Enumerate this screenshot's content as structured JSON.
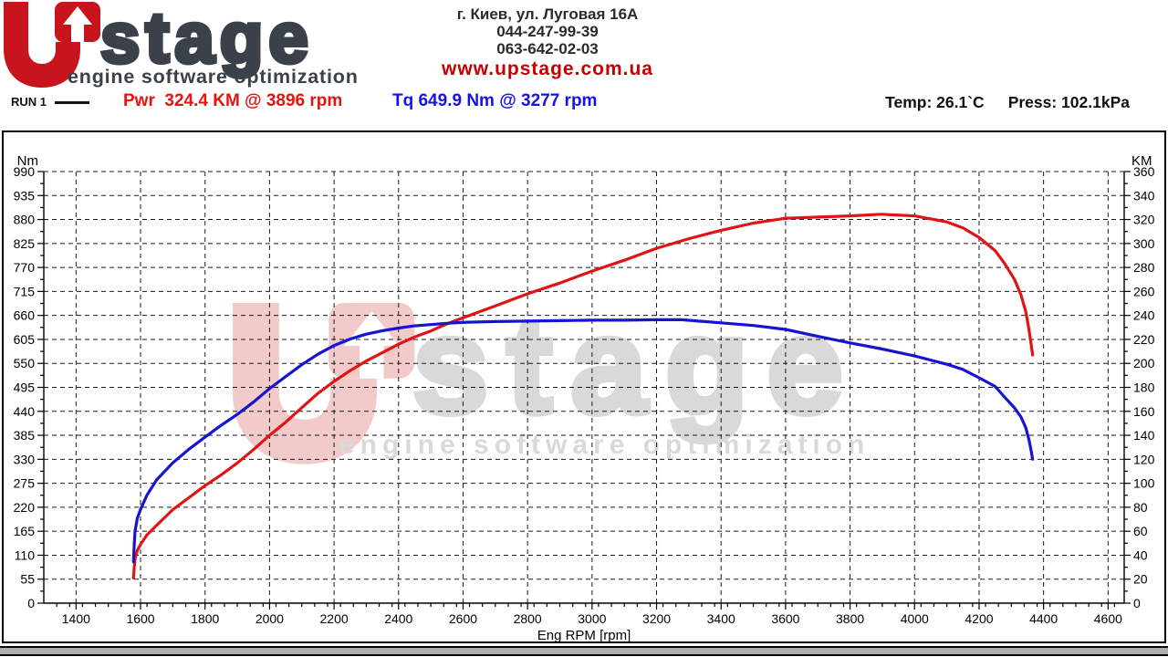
{
  "header": {
    "logo": {
      "brand": "stage",
      "tagline": "engine software optimization"
    },
    "contact": {
      "address": "г. Киев, ул. Луговая 16А",
      "phone1": "044-247-99-39",
      "phone2": "063-642-02-03",
      "website": "www.upstage.com.ua"
    },
    "run_label": "RUN 1",
    "power_readout": "Pwr  324.4 KM @ 3896 rpm",
    "torque_readout": "Tq 649.9 Nm @ 3277 rpm",
    "temp_readout": "Temp: 26.1`C",
    "pressure_readout": "Press: 102.1kPa"
  },
  "colors": {
    "power_curve": "#e01414",
    "torque_curve": "#1414d2",
    "logo_red": "#c8141c",
    "logo_gray": "#3b4149",
    "watermark_pink": "#f3caca",
    "watermark_gray": "#d9d9d9",
    "grid": "#1a1a1a"
  },
  "chart_data": {
    "type": "line",
    "xlabel": "Eng RPM [rpm]",
    "xlim": [
      1300,
      4650
    ],
    "x_ticks": [
      1400,
      1600,
      1800,
      2000,
      2200,
      2400,
      2600,
      2800,
      3000,
      3200,
      3400,
      3600,
      3800,
      4000,
      4200,
      4400,
      4600
    ],
    "x_minor_step": 40,
    "grid": "dashed",
    "left_axis": {
      "label": "Nm",
      "lim": [
        0,
        990
      ],
      "ticks": [
        0,
        55,
        110,
        165,
        220,
        275,
        330,
        385,
        440,
        495,
        550,
        605,
        660,
        715,
        770,
        825,
        880,
        935,
        990
      ],
      "minor_step": 27.5
    },
    "right_axis": {
      "label": "KM",
      "lim": [
        0,
        360
      ],
      "ticks": [
        0,
        20,
        40,
        60,
        80,
        100,
        120,
        140,
        160,
        180,
        200,
        220,
        240,
        260,
        280,
        300,
        320,
        340,
        360
      ],
      "minor_step": 10
    },
    "series": [
      {
        "name": "Pwr",
        "axis": "right",
        "unit": "KM",
        "color": "#e01414",
        "peak": {
          "value": 324.4,
          "unit": "KM",
          "rpm": 3896
        },
        "points": [
          [
            1578,
            21
          ],
          [
            1580,
            29
          ],
          [
            1583,
            37
          ],
          [
            1590,
            44
          ],
          [
            1600,
            49
          ],
          [
            1620,
            57
          ],
          [
            1650,
            65
          ],
          [
            1700,
            78
          ],
          [
            1750,
            88
          ],
          [
            1800,
            98
          ],
          [
            1850,
            107
          ],
          [
            1900,
            117
          ],
          [
            1950,
            128
          ],
          [
            2000,
            140
          ],
          [
            2050,
            151
          ],
          [
            2100,
            163
          ],
          [
            2150,
            175
          ],
          [
            2200,
            185
          ],
          [
            2250,
            194
          ],
          [
            2300,
            202
          ],
          [
            2350,
            209
          ],
          [
            2400,
            216
          ],
          [
            2450,
            222
          ],
          [
            2500,
            227
          ],
          [
            2550,
            233
          ],
          [
            2600,
            238
          ],
          [
            2700,
            248
          ],
          [
            2800,
            258
          ],
          [
            2900,
            267
          ],
          [
            3000,
            277
          ],
          [
            3100,
            286
          ],
          [
            3200,
            296
          ],
          [
            3300,
            304
          ],
          [
            3400,
            311
          ],
          [
            3500,
            317
          ],
          [
            3600,
            321
          ],
          [
            3700,
            322
          ],
          [
            3800,
            323
          ],
          [
            3896,
            324.4
          ],
          [
            4000,
            323
          ],
          [
            4100,
            318
          ],
          [
            4150,
            313
          ],
          [
            4200,
            305
          ],
          [
            4250,
            294
          ],
          [
            4280,
            283
          ],
          [
            4310,
            270
          ],
          [
            4330,
            257
          ],
          [
            4345,
            243
          ],
          [
            4355,
            228
          ],
          [
            4362,
            215
          ],
          [
            4366,
            207
          ]
        ]
      },
      {
        "name": "Tq",
        "axis": "left",
        "unit": "Nm",
        "color": "#1414d2",
        "peak": {
          "value": 649.9,
          "unit": "Nm",
          "rpm": 3277
        },
        "points": [
          [
            1578,
            95
          ],
          [
            1580,
            130
          ],
          [
            1583,
            165
          ],
          [
            1590,
            195
          ],
          [
            1600,
            215
          ],
          [
            1620,
            248
          ],
          [
            1650,
            283
          ],
          [
            1700,
            322
          ],
          [
            1750,
            353
          ],
          [
            1800,
            381
          ],
          [
            1850,
            408
          ],
          [
            1900,
            433
          ],
          [
            1950,
            461
          ],
          [
            2000,
            492
          ],
          [
            2050,
            520
          ],
          [
            2100,
            547
          ],
          [
            2150,
            571
          ],
          [
            2200,
            591
          ],
          [
            2250,
            606
          ],
          [
            2300,
            617
          ],
          [
            2350,
            625
          ],
          [
            2400,
            631
          ],
          [
            2450,
            636
          ],
          [
            2500,
            639
          ],
          [
            2550,
            642
          ],
          [
            2600,
            644
          ],
          [
            2700,
            646
          ],
          [
            2800,
            647
          ],
          [
            2900,
            648
          ],
          [
            3000,
            649
          ],
          [
            3100,
            649
          ],
          [
            3200,
            650
          ],
          [
            3277,
            650
          ],
          [
            3350,
            646
          ],
          [
            3400,
            643
          ],
          [
            3500,
            637
          ],
          [
            3600,
            628
          ],
          [
            3700,
            612
          ],
          [
            3800,
            597
          ],
          [
            3900,
            583
          ],
          [
            4000,
            567
          ],
          [
            4100,
            548
          ],
          [
            4150,
            536
          ],
          [
            4200,
            517
          ],
          [
            4250,
            497
          ],
          [
            4280,
            472
          ],
          [
            4310,
            448
          ],
          [
            4330,
            427
          ],
          [
            4345,
            402
          ],
          [
            4355,
            374
          ],
          [
            4362,
            348
          ],
          [
            4366,
            330
          ]
        ]
      }
    ]
  }
}
